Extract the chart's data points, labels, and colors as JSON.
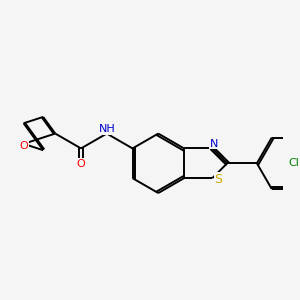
{
  "background_color": "#f5f5f5",
  "bond_color": "#000000",
  "atom_colors": {
    "O": "#ff0000",
    "N": "#0000cd",
    "S": "#ccaa00",
    "Cl": "#008000",
    "C": "#000000"
  },
  "figsize": [
    3.0,
    3.0
  ],
  "dpi": 100,
  "lw": 1.4,
  "dbl_off": 0.055,
  "fontsize": 8
}
